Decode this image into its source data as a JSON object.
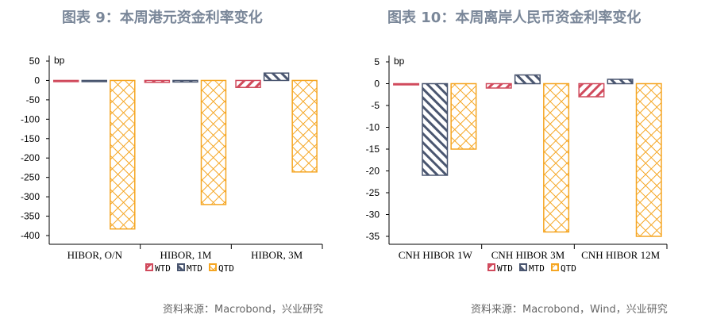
{
  "colors": {
    "WTD": "#d04a5c",
    "MTD": "#4a5670",
    "QTD": "#f5a623"
  },
  "chart_data": [
    {
      "type": "bar",
      "title": "图表 9：本周港元资金利率变化",
      "source": "资料来源：Macrobond，兴业研究",
      "unit": "bp",
      "categories": [
        "HIBOR, O/N",
        "HIBOR, 1M",
        "HIBOR, 3M"
      ],
      "ylim": [
        -400,
        50
      ],
      "yticks": [
        50,
        0,
        -50,
        -100,
        -150,
        -200,
        -250,
        -300,
        -350,
        -400
      ],
      "series": [
        {
          "name": "WTD",
          "values": [
            -1,
            -5,
            -18
          ]
        },
        {
          "name": "MTD",
          "values": [
            -1,
            -4,
            19
          ]
        },
        {
          "name": "QTD",
          "values": [
            -383,
            -320,
            -236
          ]
        }
      ],
      "legend": "bottom",
      "grid": false
    },
    {
      "type": "bar",
      "title": "图表 10：本周离岸人民币资金利率变化",
      "source": "资料来源：Macrobond，Wind，兴业研究",
      "unit": "bp",
      "categories": [
        "CNH HIBOR 1W",
        "CNH HIBOR 3M",
        "CNH HIBOR 12M"
      ],
      "ylim": [
        -35,
        5
      ],
      "yticks": [
        5,
        0,
        -5,
        -10,
        -15,
        -20,
        -25,
        -30,
        -35
      ],
      "series": [
        {
          "name": "WTD",
          "values": [
            0,
            -1,
            -3
          ]
        },
        {
          "name": "MTD",
          "values": [
            -21,
            2,
            1
          ]
        },
        {
          "name": "QTD",
          "values": [
            -15,
            -34,
            -35
          ]
        }
      ],
      "legend": "bottom",
      "grid": false
    }
  ]
}
